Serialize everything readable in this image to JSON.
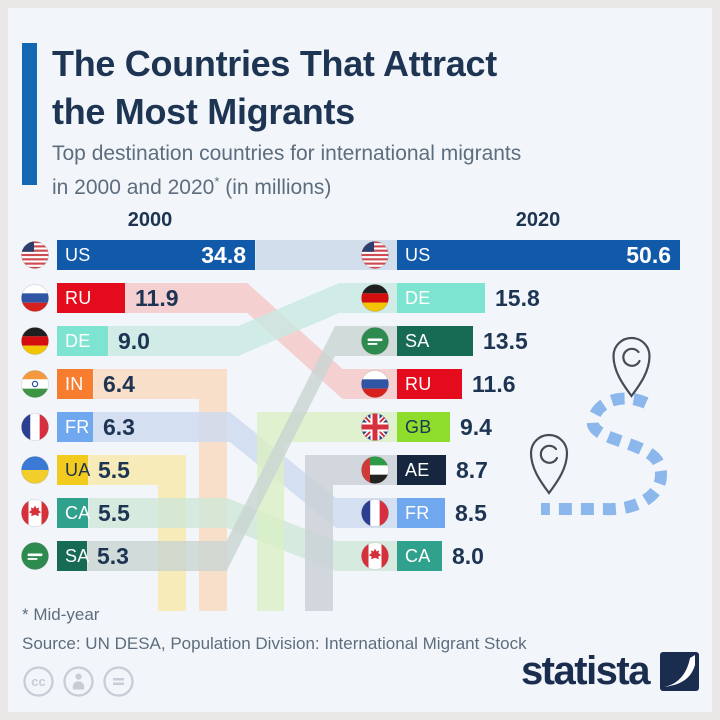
{
  "header": {
    "title_line1": "The Countries That Attract",
    "title_line2": "the Most Migrants",
    "subtitle_line1": "Top destination countries for international migrants",
    "subtitle_line2_pre": "in 2000 and 2020",
    "subtitle_sup": "*",
    "subtitle_line2_post": " (in millions)",
    "accent_color": "#1467b2"
  },
  "chart_data": {
    "type": "bar",
    "title": "The Countries That Attract the Most Migrants",
    "subtitle": "Top destination countries for international migrants in 2000 and 2020 (in millions)",
    "unit": "millions",
    "legend_position": "none",
    "grid": false,
    "columns": [
      {
        "year": "2000",
        "rows": [
          {
            "rank": 1,
            "code": "US",
            "value": 34.8,
            "label": "34.8",
            "bar_color": "#1159a9",
            "code_color": "#ffffff",
            "value_inside": true,
            "flag": "us-flag-icon"
          },
          {
            "rank": 2,
            "code": "RU",
            "value": 11.9,
            "label": "11.9",
            "bar_color": "#e40b1d",
            "code_color": "#ffffff",
            "value_inside": false,
            "flag": "ru-flag-icon"
          },
          {
            "rank": 3,
            "code": "DE",
            "value": 9.0,
            "label": "9.0",
            "bar_color": "#7ee4d2",
            "code_color": "#ffffff",
            "value_inside": false,
            "flag": "de-flag-icon"
          },
          {
            "rank": 4,
            "code": "IN",
            "value": 6.4,
            "label": "6.4",
            "bar_color": "#f87d2e",
            "code_color": "#ffffff",
            "value_inside": false,
            "flag": "in-flag-icon"
          },
          {
            "rank": 5,
            "code": "FR",
            "value": 6.3,
            "label": "6.3",
            "bar_color": "#6fa8ef",
            "code_color": "#ffffff",
            "value_inside": false,
            "flag": "fr-flag-icon"
          },
          {
            "rank": 6,
            "code": "UA",
            "value": 5.5,
            "label": "5.5",
            "bar_color": "#f3ca1e",
            "code_color": "#1d3453",
            "value_inside": false,
            "flag": "ua-flag-icon"
          },
          {
            "rank": 7,
            "code": "CA",
            "value": 5.5,
            "label": "5.5",
            "bar_color": "#2fa18c",
            "code_color": "#ffffff",
            "value_inside": false,
            "flag": "ca-flag-icon"
          },
          {
            "rank": 8,
            "code": "SA",
            "value": 5.3,
            "label": "5.3",
            "bar_color": "#176b55",
            "code_color": "#ffffff",
            "value_inside": false,
            "flag": "sa-flag-icon"
          }
        ]
      },
      {
        "year": "2020",
        "rows": [
          {
            "rank": 1,
            "code": "US",
            "value": 50.6,
            "label": "50.6",
            "bar_color": "#1159a9",
            "code_color": "#ffffff",
            "value_inside": true,
            "flag": "us-flag-icon"
          },
          {
            "rank": 2,
            "code": "DE",
            "value": 15.8,
            "label": "15.8",
            "bar_color": "#7ee4d2",
            "code_color": "#ffffff",
            "value_inside": false,
            "flag": "de-flag-icon"
          },
          {
            "rank": 3,
            "code": "SA",
            "value": 13.5,
            "label": "13.5",
            "bar_color": "#176b55",
            "code_color": "#ffffff",
            "value_inside": false,
            "flag": "sa-flag-icon"
          },
          {
            "rank": 4,
            "code": "RU",
            "value": 11.6,
            "label": "11.6",
            "bar_color": "#e40b1d",
            "code_color": "#ffffff",
            "value_inside": false,
            "flag": "ru-flag-icon"
          },
          {
            "rank": 5,
            "code": "GB",
            "value": 9.4,
            "label": "9.4",
            "bar_color": "#8edc2c",
            "code_color": "#1d3453",
            "value_inside": false,
            "flag": "gb-flag-icon"
          },
          {
            "rank": 6,
            "code": "AE",
            "value": 8.7,
            "label": "8.7",
            "bar_color": "#15263e",
            "code_color": "#ffffff",
            "value_inside": false,
            "flag": "ae-flag-icon"
          },
          {
            "rank": 7,
            "code": "FR",
            "value": 8.5,
            "label": "8.5",
            "bar_color": "#6fa8ef",
            "code_color": "#ffffff",
            "value_inside": false,
            "flag": "fr-flag-icon"
          },
          {
            "rank": 8,
            "code": "CA",
            "value": 8.0,
            "label": "8.0",
            "bar_color": "#2fa18c",
            "code_color": "#ffffff",
            "value_inside": false,
            "flag": "ca-flag-icon"
          }
        ]
      }
    ],
    "flows": [
      {
        "code": "US",
        "from_rank": 1,
        "to_rank": 1,
        "color": "#cbd8e9"
      },
      {
        "code": "RU",
        "from_rank": 2,
        "to_rank": 4,
        "color": "#f4c7c7"
      },
      {
        "code": "DE",
        "from_rank": 3,
        "to_rank": 2,
        "color": "#c8e9e2"
      },
      {
        "code": "IN",
        "from_rank": 4,
        "to_rank": null,
        "color": "#f8dabe"
      },
      {
        "code": "FR",
        "from_rank": 5,
        "to_rank": 7,
        "color": "#ccd9ef"
      },
      {
        "code": "UA",
        "from_rank": 6,
        "to_rank": null,
        "color": "#f6e8a9"
      },
      {
        "code": "CA",
        "from_rank": 7,
        "to_rank": 8,
        "color": "#cfe7d8"
      },
      {
        "code": "GB",
        "from_rank": null,
        "to_rank": 5,
        "color": "#daf0c4"
      },
      {
        "code": "AE",
        "from_rank": null,
        "to_rank": 6,
        "color": "#c9cfd6"
      },
      {
        "code": "SA",
        "from_rank": 8,
        "to_rank": 3,
        "color": "#c8d5d2"
      }
    ]
  },
  "footer": {
    "footnote": "* Mid-year",
    "source": "Source: UN DESA, Population Division: International Migrant Stock",
    "brand": "statista",
    "license_icons": [
      "cc-icon",
      "attribution-icon",
      "no-derivatives-icon"
    ]
  },
  "decor": {
    "route_color": "#8cb7ec",
    "pin_outline": "#454c54",
    "pin_fill": "#f2f6fa"
  }
}
